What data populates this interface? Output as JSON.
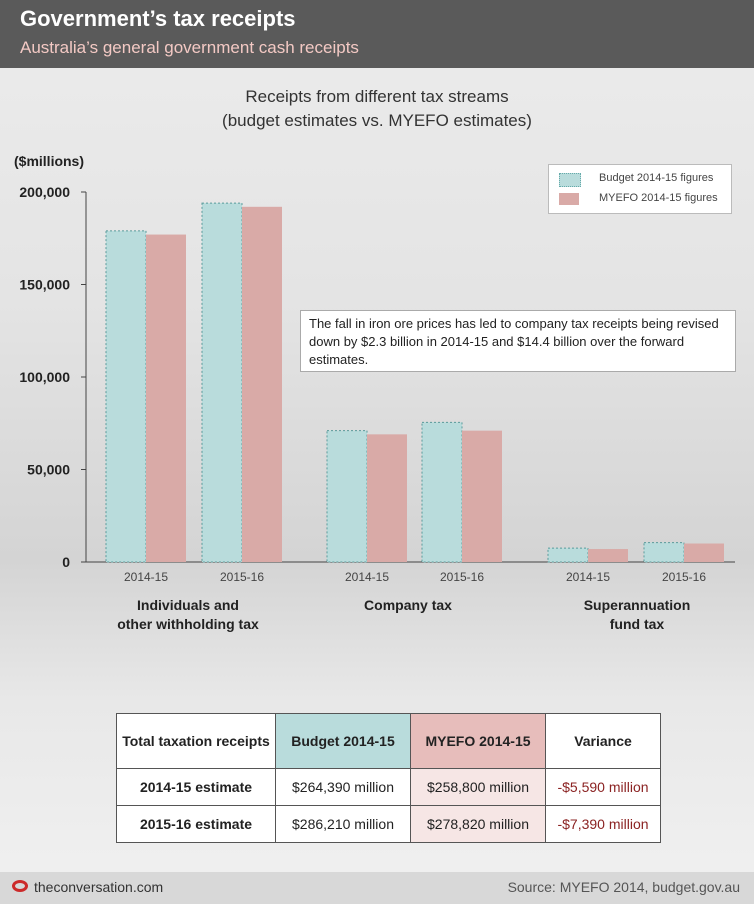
{
  "header": {
    "title": "Government’s tax receipts",
    "subtitle": "Australia’s general government cash receipts"
  },
  "chart_data": {
    "type": "bar",
    "title": "Receipts from different tax streams",
    "subtitle": "(budget estimates vs. MYEFO estimates)",
    "ylabel": "($millions)",
    "ylim": [
      0,
      200000
    ],
    "yticks": [
      0,
      50000,
      100000,
      150000,
      200000
    ],
    "ytick_labels": [
      "0",
      "50,000",
      "100,000",
      "150,000",
      "200,000"
    ],
    "categories": [
      "2014-15",
      "2015-16",
      "2014-15",
      "2015-16",
      "2014-15",
      "2015-16"
    ],
    "groups": [
      {
        "label_lines": [
          "Individuals and",
          "other withholding tax"
        ]
      },
      {
        "label_lines": [
          "Company tax"
        ]
      },
      {
        "label_lines": [
          "Superannuation",
          "fund tax"
        ]
      }
    ],
    "series": [
      {
        "name": "Budget 2014-15 figures",
        "color": "#b9dcdc",
        "values": [
          179000,
          194000,
          71000,
          75500,
          7500,
          10500
        ]
      },
      {
        "name": "MYEFO 2014-15 figures",
        "color": "#d9aaa7",
        "values": [
          177000,
          192000,
          69000,
          71000,
          7000,
          10000
        ]
      }
    ],
    "legend_position": "top-right",
    "grid": false,
    "annotation": "The fall in iron ore prices has led to company tax receipts being revised down by $2.3 billion in 2014-15 and $14.4 billion over the forward estimates."
  },
  "table": {
    "header": [
      "Total taxation receipts",
      "Budget 2014-15",
      "MYEFO 2014-15",
      "Variance"
    ],
    "rows": [
      [
        "2014-15 estimate",
        "$264,390 million",
        "$258,800 million",
        "-$5,590 million"
      ],
      [
        "2015-16 estimate",
        "$286,210 million",
        "$278,820 million",
        "-$7,390 million"
      ]
    ]
  },
  "footer": {
    "brand": "theconversation.com",
    "source": "Source: MYEFO 2014, budget.gov.au"
  }
}
